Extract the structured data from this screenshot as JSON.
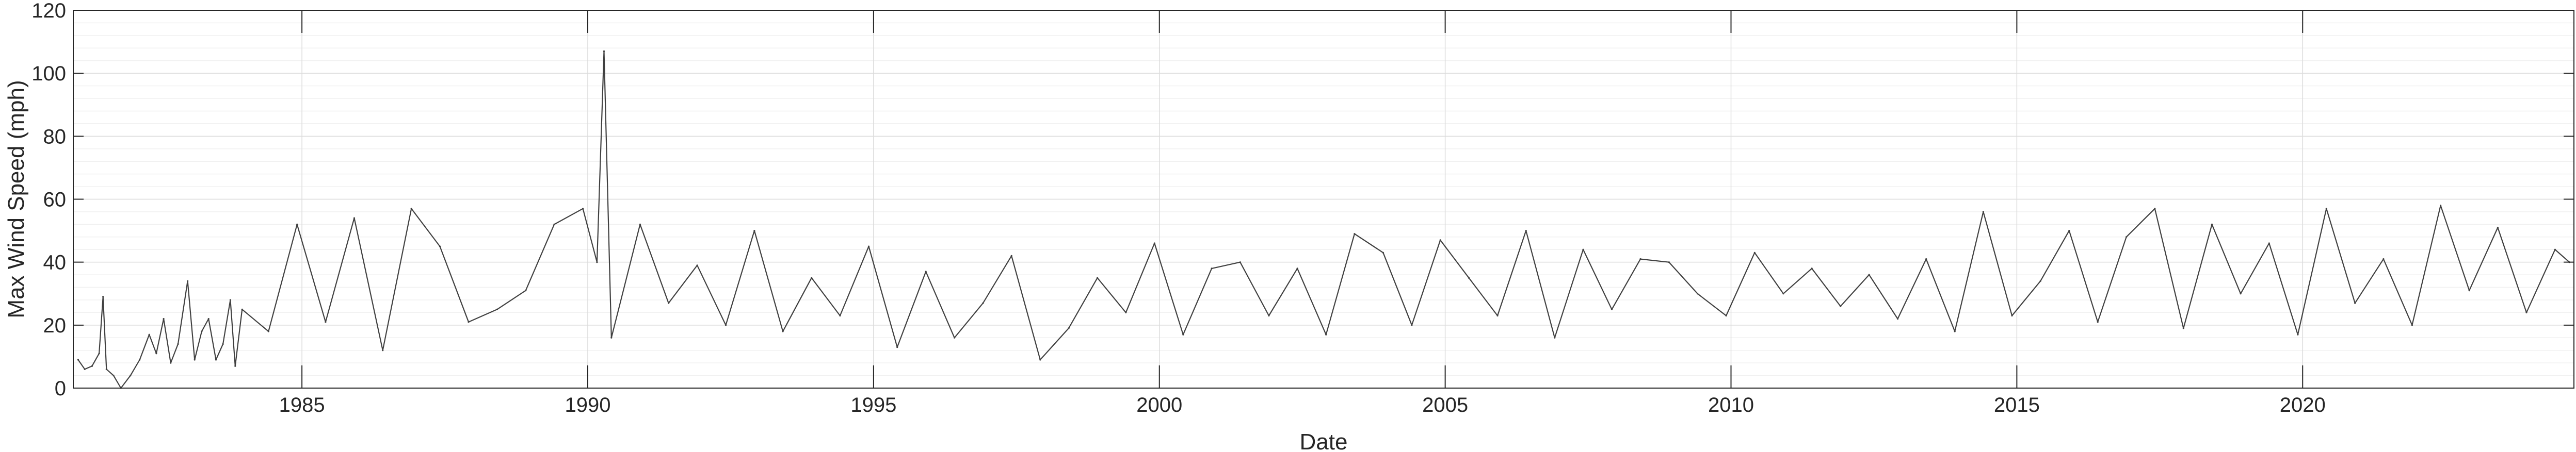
{
  "chart_data": {
    "type": "line",
    "xlabel": "Date",
    "ylabel": "Max Wind Speed (mph)",
    "xlim": [
      "1981-01-01",
      "2024-09-30"
    ],
    "ylim": [
      0,
      120
    ],
    "x_ticks": [
      "1985",
      "1990",
      "1995",
      "2000",
      "2005",
      "2010",
      "2015",
      "2020"
    ],
    "y_ticks": [
      "0",
      "20",
      "40",
      "60",
      "80",
      "100",
      "120"
    ],
    "grid": {
      "major": true,
      "minor": true
    },
    "legend": "none",
    "line_color": "#404040",
    "series": [
      {
        "x": [
          "1981-02-01",
          "1981-03-15",
          "1981-05-01",
          "1981-06-15",
          "1981-07-10",
          "1981-08-01",
          "1981-09-15",
          "1981-11-01",
          "1982-01-01",
          "1982-03-01",
          "1982-05-01",
          "1982-06-15",
          "1982-08-01",
          "1982-09-15",
          "1982-11-01",
          "1983-01-01",
          "1983-02-15",
          "1983-04-01",
          "1983-05-15",
          "1983-07-01",
          "1983-08-15",
          "1983-10-01",
          "1983-11-01",
          "1983-12-15",
          "1984-06-01",
          "1984-12-01",
          "1985-06-01",
          "1985-12-01",
          "1986-06-01",
          "1986-12-01",
          "1987-06-01",
          "1987-12-01",
          "1988-06-01",
          "1988-12-01",
          "1989-06-01",
          "1989-12-01",
          "1990-03-01",
          "1990-04-15",
          "1990-06-01",
          "1990-12-01",
          "1991-06-01",
          "1991-12-01",
          "1992-06-01",
          "1992-12-01",
          "1993-06-01",
          "1993-12-01",
          "1994-06-01",
          "1994-12-01",
          "1995-06-01",
          "1995-12-01",
          "1996-06-01",
          "1996-12-01",
          "1997-06-01",
          "1997-12-01",
          "1998-06-01",
          "1998-12-01",
          "1999-06-01",
          "1999-12-01",
          "2000-06-01",
          "2000-12-01",
          "2001-06-01",
          "2001-12-01",
          "2002-06-01",
          "2002-12-01",
          "2003-06-01",
          "2003-12-01",
          "2004-06-01",
          "2004-12-01",
          "2005-06-01",
          "2005-12-01",
          "2006-06-01",
          "2006-12-01",
          "2007-06-01",
          "2007-12-01",
          "2008-06-01",
          "2008-12-01",
          "2009-06-01",
          "2009-12-01",
          "2010-06-01",
          "2010-12-01",
          "2011-06-01",
          "2011-12-01",
          "2012-06-01",
          "2012-12-01",
          "2013-06-01",
          "2013-12-01",
          "2014-06-01",
          "2014-12-01",
          "2015-06-01",
          "2015-12-01",
          "2016-06-01",
          "2016-12-01",
          "2017-06-01",
          "2017-12-01",
          "2018-06-01",
          "2018-12-01",
          "2019-06-01",
          "2019-12-01",
          "2020-06-01",
          "2020-12-01",
          "2021-06-01",
          "2021-12-01",
          "2022-06-01",
          "2022-12-01",
          "2023-06-01",
          "2023-12-01",
          "2024-06-01",
          "2024-09-01"
        ],
        "y": [
          9,
          6,
          7,
          11,
          29,
          6,
          4,
          0,
          4,
          9,
          17,
          11,
          22,
          8,
          14,
          34,
          9,
          18,
          22,
          9,
          14,
          28,
          7,
          25,
          18,
          52,
          21,
          54,
          12,
          57,
          45,
          21,
          25,
          31,
          52,
          57,
          40,
          107,
          16,
          52,
          27,
          39,
          20,
          50,
          18,
          35,
          23,
          45,
          13,
          37,
          16,
          27,
          42,
          9,
          19,
          35,
          24,
          46,
          17,
          38,
          40,
          23,
          38,
          17,
          49,
          43,
          20,
          47,
          35,
          23,
          50,
          16,
          44,
          25,
          41,
          40,
          30,
          23,
          43,
          30,
          38,
          26,
          36,
          22,
          41,
          18,
          56,
          23,
          34,
          50,
          21,
          48,
          57,
          19,
          52,
          30,
          46,
          17,
          57,
          27,
          41,
          20,
          58,
          31,
          51,
          24,
          44,
          40
        ]
      }
    ]
  }
}
